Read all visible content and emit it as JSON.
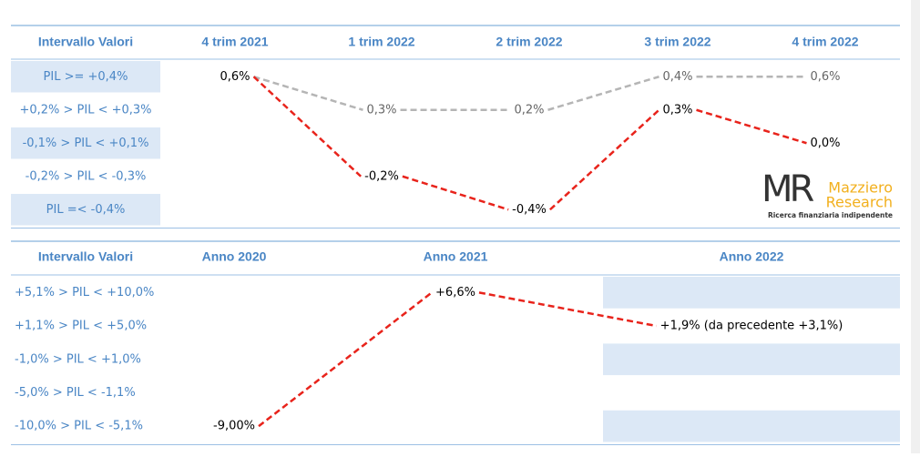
{
  "top": {
    "header": [
      "Intervallo Valori",
      "4 trim 2021",
      "1 trim 2022",
      "2 trim 2022",
      "3 trim 2022",
      "4 trim 2022"
    ],
    "rows": [
      "PIL >= +0,4%",
      "+0,2% > PIL < +0,3%",
      "-0,1% > PIL < +0,1%",
      "-0,2% > PIL < -0,3%",
      "PIL =< -0,4%"
    ],
    "start": {
      "column": 1,
      "row": 0,
      "label": "0,6%"
    },
    "lines": [
      {
        "color": "#b5b5b5",
        "text_color": "#666666",
        "points": [
          {
            "column": 2,
            "row": 1,
            "label": "0,3%"
          },
          {
            "column": 3,
            "row": 1,
            "label": "0,2%"
          },
          {
            "column": 4,
            "row": 0,
            "label": "0,4%"
          },
          {
            "column": 5,
            "row": 0,
            "label": "0,6%"
          }
        ]
      },
      {
        "color": "#e8231b",
        "text_color": "#000000",
        "points": [
          {
            "column": 2,
            "row": 3,
            "label": "-0,2%"
          },
          {
            "column": 3,
            "row": 4,
            "label": "-0,4%"
          },
          {
            "column": 4,
            "row": 1,
            "label": "0,3%"
          },
          {
            "column": 5,
            "row": 2,
            "label": "0,0%"
          }
        ]
      }
    ]
  },
  "bottom": {
    "header": [
      "Intervallo Valori",
      "Anno 2020",
      "Anno 2021",
      "Anno 2022"
    ],
    "rows": [
      "+5,1% > PIL < +10,0%",
      "+1,1% > PIL < +5,0%",
      "-1,0% > PIL < +1,0%",
      "-5,0% > PIL < -1,1%",
      "-10,0% > PIL < -5,1%"
    ],
    "lines": [
      {
        "color": "#e8231b",
        "text_color": "#000000",
        "points": [
          {
            "column": 1,
            "row": 4,
            "label": "-9,00%"
          },
          {
            "column": 2,
            "row": 0,
            "label": "+6,6%"
          },
          {
            "column": 3,
            "row": 1,
            "label": "+1,9% (da precedente +3,1%)"
          }
        ]
      }
    ]
  },
  "logo": {
    "mark": "MR",
    "name1": "Mazziero",
    "name2": "Research",
    "tagline": "Ricerca finanziaria indipendente"
  }
}
